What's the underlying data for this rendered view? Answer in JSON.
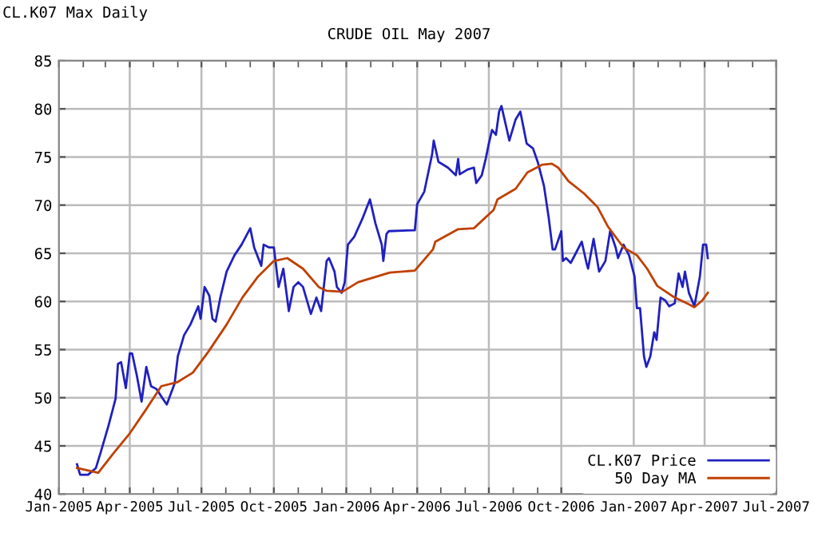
{
  "chart_data": {
    "type": "line",
    "title": "CRUDE OIL May 2007",
    "subtitle": "CL.K07 Max Daily",
    "xlim": [
      "2005-01-01",
      "2007-07-01"
    ],
    "xticks": [
      {
        "value": "2005-01-01",
        "label": "Jan-2005"
      },
      {
        "value": "2005-04-01",
        "label": "Apr-2005"
      },
      {
        "value": "2005-07-01",
        "label": "Jul-2005"
      },
      {
        "value": "2005-10-01",
        "label": "Oct-2005"
      },
      {
        "value": "2006-01-01",
        "label": "Jan-2006"
      },
      {
        "value": "2006-04-01",
        "label": "Apr-2006"
      },
      {
        "value": "2006-07-01",
        "label": "Jul-2006"
      },
      {
        "value": "2006-10-01",
        "label": "Oct-2006"
      },
      {
        "value": "2007-01-01",
        "label": "Jan-2007"
      },
      {
        "value": "2007-04-01",
        "label": "Apr-2007"
      },
      {
        "value": "2007-07-01",
        "label": "Jul-2007"
      }
    ],
    "ylim": [
      40,
      85
    ],
    "yticks": [
      40,
      45,
      50,
      55,
      60,
      65,
      70,
      75,
      80,
      85
    ],
    "grid": true,
    "legend": "bottom right",
    "marker": "none",
    "line_style": "solid",
    "series": [
      {
        "name": "CL.K07 Price",
        "color": "#2020c0",
        "x": [
          "2005-01-24",
          "2005-01-28",
          "2005-02-07",
          "2005-02-17",
          "2005-02-23",
          "2005-03-05",
          "2005-03-14",
          "2005-03-17",
          "2005-03-21",
          "2005-03-27",
          "2005-04-01",
          "2005-04-04",
          "2005-04-10",
          "2005-04-16",
          "2005-04-22",
          "2005-04-28",
          "2005-05-05",
          "2005-05-13",
          "2005-05-18",
          "2005-05-28",
          "2005-06-01",
          "2005-06-09",
          "2005-06-17",
          "2005-06-27",
          "2005-06-30",
          "2005-07-05",
          "2005-07-11",
          "2005-07-15",
          "2005-07-19",
          "2005-07-25",
          "2005-08-02",
          "2005-08-12",
          "2005-08-21",
          "2005-09-01",
          "2005-09-06",
          "2005-09-15",
          "2005-09-18",
          "2005-09-25",
          "2005-10-01",
          "2005-10-07",
          "2005-10-13",
          "2005-10-20",
          "2005-10-26",
          "2005-11-01",
          "2005-11-07",
          "2005-11-17",
          "2005-11-24",
          "2005-11-30",
          "2005-12-07",
          "2005-12-10",
          "2005-12-17",
          "2005-12-20",
          "2005-12-26",
          "2005-12-30",
          "2006-01-03",
          "2006-01-11",
          "2006-01-22",
          "2006-01-31",
          "2006-02-07",
          "2006-02-15",
          "2006-02-17",
          "2006-02-21",
          "2006-02-24",
          "2006-03-29",
          "2006-04-01",
          "2006-04-10",
          "2006-04-20",
          "2006-04-22",
          "2006-04-28",
          "2006-05-10",
          "2006-05-20",
          "2006-05-23",
          "2006-05-25",
          "2006-06-04",
          "2006-06-12",
          "2006-06-15",
          "2006-06-22",
          "2006-06-27",
          "2006-07-01",
          "2006-07-05",
          "2006-07-10",
          "2006-07-14",
          "2006-07-17",
          "2006-07-24",
          "2006-07-27",
          "2006-08-04",
          "2006-08-10",
          "2006-08-18",
          "2006-08-26",
          "2006-09-01",
          "2006-09-09",
          "2006-09-15",
          "2006-09-20",
          "2006-09-23",
          "2006-10-01",
          "2006-10-03",
          "2006-10-07",
          "2006-10-13",
          "2006-10-27",
          "2006-11-02",
          "2006-11-04",
          "2006-11-11",
          "2006-11-18",
          "2006-11-26",
          "2006-12-02",
          "2006-12-09",
          "2006-12-12",
          "2006-12-19",
          "2006-12-26",
          "2007-01-02",
          "2007-01-05",
          "2007-01-09",
          "2007-01-14",
          "2007-01-17",
          "2007-01-22",
          "2007-01-27",
          "2007-01-30",
          "2007-02-04",
          "2007-02-10",
          "2007-02-15",
          "2007-02-22",
          "2007-02-27",
          "2007-03-04",
          "2007-03-07",
          "2007-03-12",
          "2007-03-19",
          "2007-03-26",
          "2007-03-30",
          "2007-04-03",
          "2007-04-05"
        ],
        "values": [
          43.1,
          42.0,
          42.0,
          42.7,
          44.3,
          47.1,
          49.9,
          53.5,
          53.7,
          51.0,
          54.6,
          54.6,
          52.3,
          49.6,
          53.2,
          51.2,
          50.9,
          49.9,
          49.3,
          51.5,
          54.3,
          56.5,
          57.6,
          59.5,
          58.2,
          61.5,
          60.6,
          58.2,
          57.9,
          60.4,
          63.1,
          64.8,
          65.9,
          67.6,
          65.6,
          63.7,
          65.9,
          65.6,
          65.6,
          61.5,
          63.4,
          59.0,
          61.5,
          62.0,
          61.5,
          58.7,
          60.4,
          59.0,
          64.2,
          64.5,
          63.1,
          61.5,
          60.9,
          62.0,
          65.9,
          66.7,
          68.7,
          70.6,
          68.1,
          65.9,
          64.2,
          67.0,
          67.3,
          67.4,
          70.1,
          71.4,
          75.3,
          76.7,
          74.5,
          73.9,
          73.1,
          74.8,
          73.2,
          73.7,
          73.9,
          72.3,
          73.1,
          74.8,
          76.4,
          77.8,
          77.3,
          79.7,
          80.3,
          77.8,
          76.7,
          78.9,
          79.7,
          76.4,
          75.9,
          74.5,
          72.0,
          68.7,
          65.4,
          65.4,
          67.3,
          64.2,
          64.5,
          64.0,
          66.2,
          64.0,
          63.4,
          66.5,
          63.1,
          64.2,
          67.3,
          65.6,
          64.5,
          65.9,
          64.8,
          62.6,
          59.3,
          59.3,
          54.3,
          53.2,
          54.3,
          56.8,
          56.0,
          60.4,
          60.1,
          59.5,
          59.8,
          62.9,
          61.5,
          63.1,
          60.9,
          59.5,
          62.6,
          65.9,
          65.9,
          64.5
        ]
      },
      {
        "name": "50 Day MA",
        "color": "#c04000",
        "x": [
          "2005-01-24",
          "2005-02-20",
          "2005-03-12",
          "2005-04-01",
          "2005-04-21",
          "2005-05-11",
          "2005-05-31",
          "2005-06-20",
          "2005-07-10",
          "2005-08-02",
          "2005-08-22",
          "2005-09-11",
          "2005-10-01",
          "2005-10-18",
          "2005-11-07",
          "2005-11-27",
          "2005-12-07",
          "2005-12-27",
          "2006-01-16",
          "2006-02-25",
          "2006-03-29",
          "2006-04-21",
          "2006-04-24",
          "2006-05-23",
          "2006-06-12",
          "2006-07-07",
          "2006-07-12",
          "2006-08-04",
          "2006-08-19",
          "2006-09-07",
          "2006-09-19",
          "2006-09-27",
          "2006-10-10",
          "2006-10-30",
          "2006-11-16",
          "2006-11-29",
          "2006-12-19",
          "2007-01-05",
          "2007-01-18",
          "2007-01-31",
          "2007-02-20",
          "2007-03-12",
          "2007-03-19",
          "2007-03-29",
          "2007-04-05"
        ],
        "values": [
          42.7,
          42.2,
          44.3,
          46.3,
          48.7,
          51.2,
          51.6,
          52.6,
          54.8,
          57.6,
          60.4,
          62.6,
          64.2,
          64.5,
          63.4,
          61.5,
          61.1,
          61.0,
          62.0,
          63.0,
          63.2,
          65.4,
          66.2,
          67.5,
          67.6,
          69.5,
          70.6,
          71.7,
          73.4,
          74.2,
          74.3,
          73.9,
          72.5,
          71.2,
          69.8,
          67.8,
          65.6,
          64.8,
          63.4,
          61.6,
          60.5,
          59.7,
          59.4,
          60.1,
          60.9
        ]
      }
    ]
  }
}
